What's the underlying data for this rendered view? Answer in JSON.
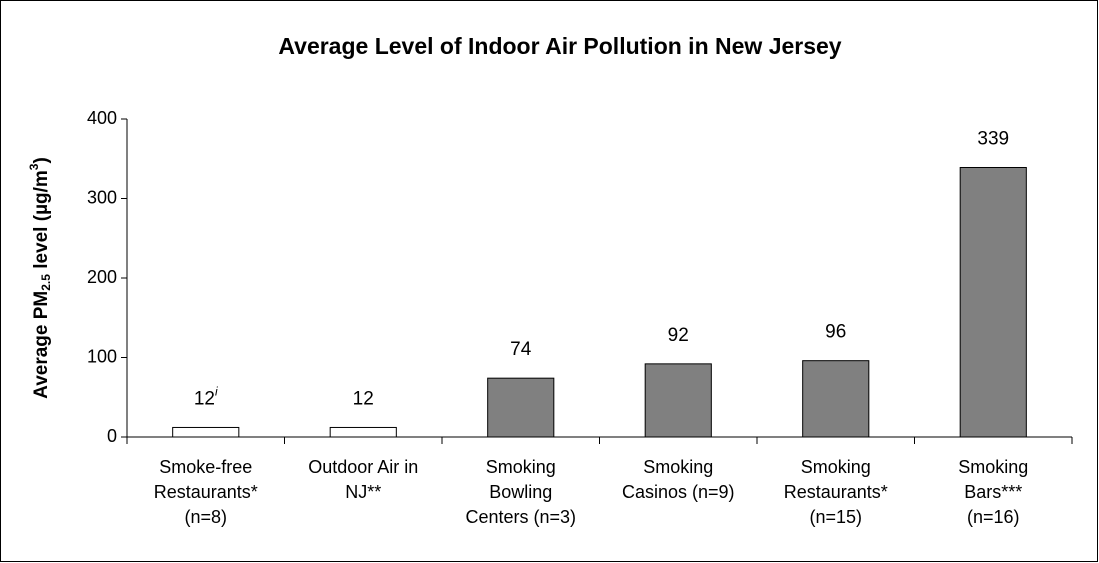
{
  "chart_data": {
    "type": "bar",
    "title": "Average Level of Indoor Air Pollution in New Jersey",
    "ylabel": {
      "text": [
        "Average PM",
        " level (µg/m",
        ")"
      ],
      "sub": "2.5",
      "sup": "3"
    },
    "categories": [
      [
        "Smoke-free",
        "Restaurants*",
        "(n=8)"
      ],
      [
        "Outdoor Air in",
        "NJ**"
      ],
      [
        "Smoking",
        "Bowling",
        "Centers (n=3)"
      ],
      [
        "Smoking",
        "Casinos (n=9)"
      ],
      [
        "Smoking",
        "Restaurants*",
        "(n=15)"
      ],
      [
        "Smoking",
        "Bars***",
        "(n=16)"
      ]
    ],
    "values": [
      12,
      12,
      74,
      92,
      96,
      339
    ],
    "superscripts": [
      "i",
      null,
      null,
      null,
      null,
      null
    ],
    "colors": [
      "#ffffff",
      "#ffffff",
      "#808080",
      "#808080",
      "#808080",
      "#808080"
    ],
    "ylim": [
      0,
      400
    ],
    "yticks": [
      0,
      100,
      200,
      300,
      400
    ],
    "grid": false
  }
}
